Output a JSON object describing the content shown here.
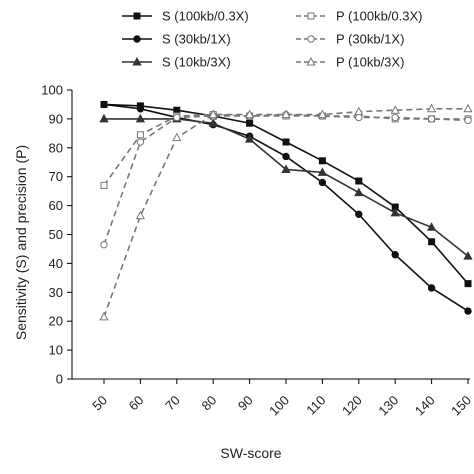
{
  "chart_data": {
    "type": "line",
    "xlabel": "SW-score",
    "ylabel": "Sensitivity (S)  and precision (P)",
    "xlim": [
      50,
      150
    ],
    "ylim": [
      0,
      100
    ],
    "x_ticks": [
      50,
      60,
      70,
      80,
      90,
      100,
      110,
      120,
      130,
      140,
      150
    ],
    "y_ticks": [
      0,
      10,
      20,
      30,
      40,
      50,
      60,
      70,
      80,
      90,
      100
    ],
    "grid": false,
    "legend_position": "top",
    "series": [
      {
        "name": "S (100kb/0.3X)",
        "color": "#111111",
        "dash": "solid",
        "marker": "square-filled",
        "x": [
          50,
          60,
          70,
          80,
          90,
          100,
          110,
          120,
          130,
          140,
          150
        ],
        "y": [
          95,
          94.5,
          93,
          91,
          88.5,
          82,
          75.5,
          68.5,
          59.5,
          47.5,
          33
        ]
      },
      {
        "name": "S (30kb/1X)",
        "color": "#111111",
        "dash": "solid",
        "marker": "circle-filled",
        "x": [
          50,
          60,
          70,
          80,
          90,
          100,
          110,
          120,
          130,
          140,
          150
        ],
        "y": [
          95,
          93.5,
          90.5,
          88,
          84,
          77,
          68,
          57,
          43,
          31.5,
          23.5
        ]
      },
      {
        "name": "S (10kb/3X)",
        "color": "#333333",
        "dash": "solid",
        "marker": "triangle-filled",
        "x": [
          50,
          60,
          70,
          80,
          90,
          100,
          110,
          120,
          130,
          140,
          150
        ],
        "y": [
          90,
          90,
          90,
          88.5,
          83,
          72.5,
          71.5,
          64.5,
          57.5,
          52.5,
          42.5
        ]
      },
      {
        "name": "P (100kb/0.3X)",
        "color": "#777777",
        "dash": "dashed",
        "marker": "square-open",
        "x": [
          50,
          60,
          70,
          80,
          90,
          100,
          110,
          120,
          130,
          140,
          150
        ],
        "y": [
          67,
          84.5,
          91,
          91.5,
          91,
          91,
          91,
          91,
          90,
          90,
          90
        ]
      },
      {
        "name": "P (30kb/1X)",
        "color": "#777777",
        "dash": "dashed",
        "marker": "circle-open",
        "x": [
          50,
          60,
          70,
          80,
          90,
          100,
          110,
          120,
          130,
          140,
          150
        ],
        "y": [
          46.5,
          82,
          90.5,
          91,
          91,
          91.5,
          91,
          90.5,
          90.5,
          90,
          89.5
        ]
      },
      {
        "name": "P (10kb/3X)",
        "color": "#777777",
        "dash": "dashed",
        "marker": "triangle-open",
        "x": [
          50,
          60,
          70,
          80,
          90,
          100,
          110,
          120,
          130,
          140,
          150
        ],
        "y": [
          21.5,
          56.5,
          83.5,
          91.5,
          91.5,
          91.5,
          91.5,
          92.5,
          93,
          93.5,
          93.5
        ]
      }
    ]
  }
}
